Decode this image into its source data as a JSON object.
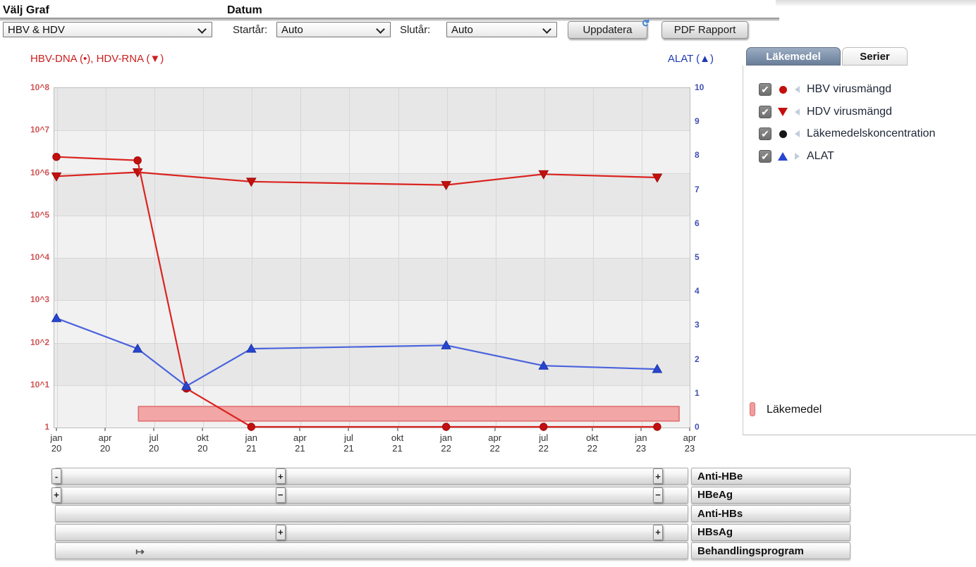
{
  "toolbar": {
    "graph_label": "Välj Graf",
    "graph_value": "HBV & HDV",
    "date_label": "Datum",
    "start_year_label": "Startår:",
    "start_year_value": "Auto",
    "end_year_label": "Slutår:",
    "end_year_value": "Auto",
    "update_button": "Uppdatera",
    "pdf_button": "PDF Rapport"
  },
  "chart_data": {
    "type": "line",
    "title_left": "HBV-DNA (•), HDV-RNA (▼)",
    "title_right": "ALAT (▲)",
    "x_ticks": [
      [
        "jan",
        "20"
      ],
      [
        "apr",
        "20"
      ],
      [
        "jul",
        "20"
      ],
      [
        "okt",
        "20"
      ],
      [
        "jan",
        "21"
      ],
      [
        "apr",
        "21"
      ],
      [
        "jul",
        "21"
      ],
      [
        "okt",
        "21"
      ],
      [
        "jan",
        "22"
      ],
      [
        "apr",
        "22"
      ],
      [
        "jul",
        "22"
      ],
      [
        "okt",
        "22"
      ],
      [
        "jan",
        "23"
      ],
      [
        "apr",
        "23"
      ]
    ],
    "y_left": {
      "labels_top_to_bottom": [
        "10^8",
        "10^7",
        "10^6",
        "10^5",
        "10^4",
        "10^3",
        "10^2",
        "10^1",
        "1"
      ],
      "scale": "log",
      "range": [
        1,
        100000000
      ],
      "color": "#cf5555"
    },
    "y_right": {
      "labels_top_to_bottom": [
        "10",
        "9",
        "8",
        "7",
        "6",
        "5",
        "4",
        "3",
        "2",
        "1",
        "0"
      ],
      "range": [
        0,
        10
      ],
      "color": "#4050b4"
    },
    "grid": "on",
    "series": [
      {
        "name": "HBV-DNA",
        "axis": "left",
        "marker": "circle",
        "color": "#da2420",
        "points": [
          {
            "date": "jan 20",
            "month": 0,
            "value": 2300000
          },
          {
            "date": "jun 20",
            "month": 5,
            "value": 1900000
          },
          {
            "date": "sep 20",
            "month": 8,
            "value": 8
          },
          {
            "date": "jan 21",
            "month": 12,
            "value": 1
          },
          {
            "date": "jan 22",
            "month": 24,
            "value": 1
          },
          {
            "date": "jul 22",
            "month": 30,
            "value": 1
          },
          {
            "date": "feb 23",
            "month": 37,
            "value": 1
          }
        ]
      },
      {
        "name": "HDV-RNA",
        "axis": "left",
        "marker": "triangle-down",
        "color": "#da2420",
        "points": [
          {
            "date": "jan 20",
            "month": 0,
            "value": 800000
          },
          {
            "date": "jun 20",
            "month": 5,
            "value": 1000000
          },
          {
            "date": "jan 21",
            "month": 12,
            "value": 600000
          },
          {
            "date": "jan 22",
            "month": 24,
            "value": 500000
          },
          {
            "date": "jul 22",
            "month": 30,
            "value": 900000
          },
          {
            "date": "feb 23",
            "month": 37,
            "value": 750000
          }
        ]
      },
      {
        "name": "ALAT",
        "axis": "right",
        "marker": "triangle-up",
        "color": "#4a63dd",
        "points": [
          {
            "date": "jan 20",
            "month": 0,
            "value": 3.2
          },
          {
            "date": "jun 20",
            "month": 5,
            "value": 2.3
          },
          {
            "date": "sep 20",
            "month": 8,
            "value": 1.2
          },
          {
            "date": "jan 21",
            "month": 12,
            "value": 2.3
          },
          {
            "date": "jan 22",
            "month": 24,
            "value": 2.4
          },
          {
            "date": "jul 22",
            "month": 30,
            "value": 1.8
          },
          {
            "date": "feb 23",
            "month": 37,
            "value": 1.7
          }
        ]
      }
    ],
    "band": {
      "label": "Läkemedel",
      "from_month": 5.05,
      "to_month": 38.35,
      "value_from": 0.17,
      "value_to": 0.6,
      "fill": "#f2a6a6",
      "border": "#df6a6a"
    }
  },
  "panel": {
    "tabs": [
      {
        "label": "Läkemedel",
        "active": true
      },
      {
        "label": "Serier",
        "active": false
      }
    ],
    "legend": [
      {
        "label": "HBV virusmängd",
        "checked": true,
        "symbol": "circle",
        "color": "#c40f0f",
        "arrow": "left"
      },
      {
        "label": "HDV virusmängd",
        "checked": true,
        "symbol": "triangle-down",
        "color": "#c40f0f",
        "arrow": "left"
      },
      {
        "label": "Läkemedelskoncentration",
        "checked": true,
        "symbol": "circle",
        "color": "#161616",
        "arrow": "left"
      },
      {
        "label": "ALAT",
        "checked": true,
        "symbol": "triangle-up",
        "color": "#2745cf",
        "arrow": "right"
      }
    ],
    "band_legend": {
      "label": "Läkemedel",
      "color": "#f29d9d"
    },
    "check_glyph": "✔"
  },
  "tracks": [
    {
      "label": "Anti-HBe",
      "markers": [
        {
          "month": 0,
          "glyph": "-"
        },
        {
          "month": 13.8,
          "glyph": "+"
        },
        {
          "month": 37.05,
          "glyph": "+"
        }
      ]
    },
    {
      "label": "HBeAg",
      "markers": [
        {
          "month": 0,
          "glyph": "+"
        },
        {
          "month": 13.8,
          "glyph": "−"
        },
        {
          "month": 37.05,
          "glyph": "−"
        }
      ]
    },
    {
      "label": "Anti-HBs",
      "markers": []
    },
    {
      "label": "HBsAg",
      "markers": [
        {
          "month": 13.8,
          "glyph": "+"
        },
        {
          "month": 37.05,
          "glyph": "+"
        }
      ]
    },
    {
      "label": "Behandlingsprogram",
      "markers": [
        {
          "month": 5.05,
          "glyph": "↦",
          "style": "arrow"
        }
      ]
    }
  ],
  "icons": {
    "update_refresh": "↻"
  }
}
